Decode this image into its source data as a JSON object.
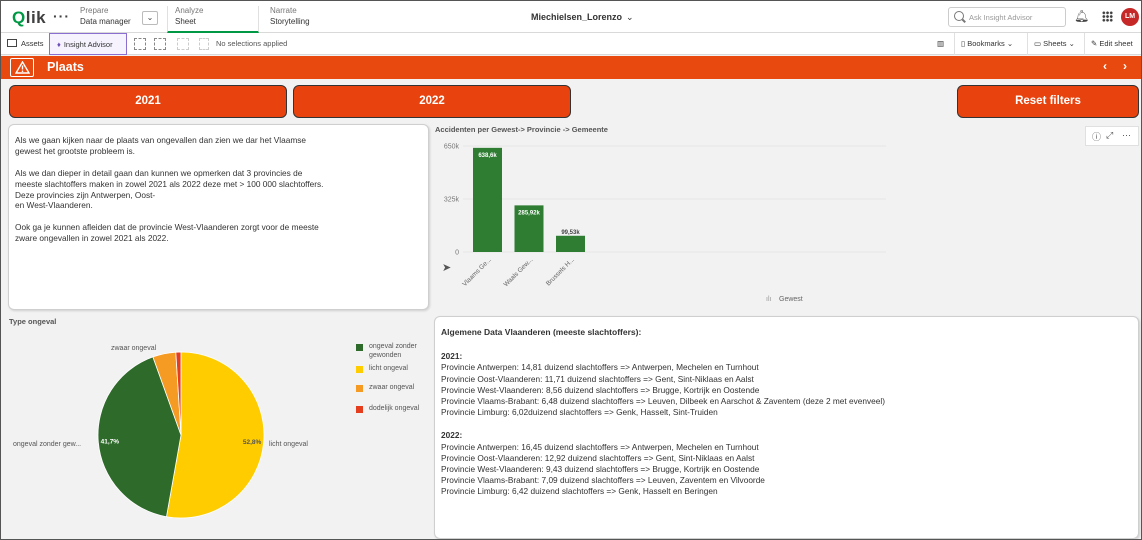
{
  "topbar": {
    "logo_main": "Q",
    "logo_rest": "lik",
    "prepare": {
      "label": "Prepare",
      "sub": "Data manager"
    },
    "analyze": {
      "label": "Analyze",
      "sub": "Sheet"
    },
    "narrate": {
      "label": "Narrate",
      "sub": "Storytelling"
    },
    "app_name": "Miechielsen_Lorenzo",
    "ask_placeholder": "Ask Insight Advisor",
    "avatar": "LM"
  },
  "toolbar": {
    "assets": "Assets",
    "insight_advisor": "Insight Advisor",
    "no_selections": "No selections applied",
    "bookmarks": "Bookmarks",
    "sheets": "Sheets",
    "edit_sheet": "Edit sheet"
  },
  "sheet": {
    "title": "Plaats"
  },
  "filters": {
    "btn_2021": "2021",
    "btn_2022": "2022",
    "reset": "Reset filters"
  },
  "textbox": {
    "p1": "Als we gaan kijken naar de plaats van ongevallen dan zien we dar het Vlaamse\ngewest het grootste probleem is.",
    "p2": "Als we dan dieper in detail gaan dan kunnen we opmerken dat 3 provincies de\nmeeste slachtoffers maken in zowel 2021 als 2022 deze met > 100 000 slachtoffers.\nDeze provincies zijn Antwerpen, Oost-\nen West-Vlaanderen.",
    "p3": "Ook ga je kunnen afleiden dat de provincie West-Vlaanderen zorgt voor de meeste\nzware ongevallen in zowel 2021 als 2022."
  },
  "chart_data": [
    {
      "type": "bar",
      "title": "Accidenten per Gewest-> Provincie -> Gemeente",
      "categories": [
        "Vlaams Ge...",
        "Waals Gew...",
        "Brussels H..."
      ],
      "values": [
        638.6,
        285.92,
        99.53
      ],
      "value_labels": [
        "638,6k",
        "285,92k",
        "99,53k"
      ],
      "ytick_labels": [
        "650k",
        "325k",
        "0"
      ],
      "ylim": [
        0,
        650
      ],
      "xlabel": "Gewest",
      "color": "#2e7d32"
    },
    {
      "type": "pie",
      "title": "Type ongeval",
      "slices": [
        {
          "name": "licht ongeval",
          "value": 52.8,
          "label": "52,8%",
          "color": "#ffcc00"
        },
        {
          "name": "ongeval zonder gewonden",
          "value": 41.7,
          "label": "41,7%",
          "color": "#2e6b2a"
        },
        {
          "name": "zwaar ongeval",
          "value": 4.5,
          "label": "",
          "color": "#f59a23"
        },
        {
          "name": "dodelijk ongeval",
          "value": 1.0,
          "label": "",
          "color": "#e53e1e"
        }
      ],
      "outer_labels": [
        "zwaar ongeval",
        "ongeval zonder gew...",
        "licht ongeval"
      ],
      "legend": [
        "ongeval zonder gewonden",
        "licht ongeval",
        "zwaar ongeval",
        "dodelijk ongeval"
      ],
      "legend_colors": [
        "#2e6b2a",
        "#ffcc00",
        "#f59a23",
        "#e53e1e"
      ]
    }
  ],
  "info": {
    "heading": "Algemene Data Vlaanderen (meeste slachtoffers):",
    "y2021": "2021:",
    "lines2021": [
      "Provincie Antwerpen: 14,81 duizend slachtoffers => Antwerpen, Mechelen en Turnhout",
      "Provincie Oost-Vlaanderen: 11,71 duizend slachtoffers => Gent, Sint-Niklaas en Aalst",
      "Provincie West-Vlaanderen: 8,56 duizend slachtoffers => Brugge, Kortrijk en Oostende",
      "Provincie Vlaams-Brabant: 6,48 duizend slachtoffers => Leuven, Dilbeek en Aarschot & Zaventem (deze 2 met evenveel)",
      "Provincie Limburg: 6,02duizend slachtoffers => Genk, Hasselt, Sint-Truiden"
    ],
    "y2022": "2022:",
    "lines2022": [
      "Provincie Antwerpen: 16,45 duizend slachtoffers => Antwerpen, Mechelen en Turnhout",
      "Provincie Oost-Vlaanderen: 12,92 duizend slachtoffers => Gent, Sint-Niklaas en Aalst",
      "Provincie West-Vlaanderen: 9,43 duizend slachtoffers => Brugge, Kortrijk en Oostende",
      "Provincie Vlaams-Brabant: 7,09 duizend slachtoffers => Leuven, Zaventem en Vilvoorde",
      "Provincie Limburg: 6,42 duizend slachtoffers => Genk, Hasselt en Beringen"
    ]
  }
}
